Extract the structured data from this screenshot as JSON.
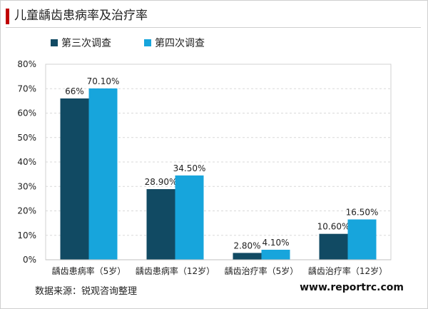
{
  "page": {
    "title": "儿童龋齿患病率及治疗率"
  },
  "footer": {
    "source": "数据来源：锐观咨询整理",
    "site": "www.reportrc.com"
  },
  "colors": {
    "series1": "#114a63",
    "series2": "#17a5dc",
    "accent": "#c00000"
  },
  "chart_data": {
    "type": "bar",
    "title": "儿童龋齿患病率及治疗率",
    "categories": [
      "龋齿患病率（5岁）",
      "龋齿患病率（12岁）",
      "龋齿治疗率（5岁）",
      "龋齿治疗率（12岁）"
    ],
    "series": [
      {
        "name": "第三次调查",
        "values": [
          66,
          28.9,
          2.8,
          10.6
        ],
        "labels": [
          "66%",
          "28.90%",
          "2.80%",
          "10.60%"
        ]
      },
      {
        "name": "第四次调查",
        "values": [
          70.1,
          34.5,
          4.1,
          16.5
        ],
        "labels": [
          "70.10%",
          "34.50%",
          "4.10%",
          "16.50%"
        ]
      }
    ],
    "yticks": [
      "0%",
      "10%",
      "20%",
      "30%",
      "40%",
      "50%",
      "60%",
      "70%",
      "80%"
    ],
    "ylim": [
      0,
      80
    ],
    "xlabel": "",
    "ylabel": "",
    "grid": true,
    "legend": "top-left"
  }
}
